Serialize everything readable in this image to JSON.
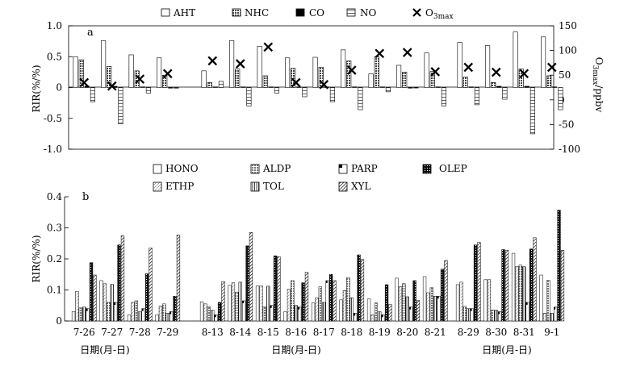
{
  "chart_data": [
    {
      "type": "bar",
      "panel_label": "a",
      "ylabel": "RIR(%/%)",
      "y2label_main": "O",
      "y2label_sub": "3max",
      "y2label_unit": "/ppbv",
      "ylim": [
        -1.0,
        1.0
      ],
      "y2lim": [
        -100,
        150
      ],
      "yticks": [
        "1.0",
        "0.5",
        "0",
        "-0.5",
        "-1.0"
      ],
      "y2ticks": [
        "150",
        "100",
        "50",
        "0",
        "-50",
        "-100"
      ],
      "legend": {
        "AHT": "AHT",
        "NHC": "NHC",
        "CO": "CO",
        "NO": "NO",
        "O3_main": "O",
        "O3_sub": "3max"
      },
      "series": [
        {
          "name": "AHT",
          "values": [
            0.5,
            0.76,
            0.53,
            0.48,
            0.27,
            0.76,
            0.67,
            0.48,
            0.49,
            0.61,
            0.22,
            0.36,
            0.56,
            0.73,
            0.68,
            0.9,
            0.82
          ]
        },
        {
          "name": "NHC",
          "values": [
            0.45,
            0.34,
            0.27,
            0.2,
            0.08,
            0.3,
            0.19,
            0.31,
            0.33,
            0.43,
            0.5,
            0.25,
            0.26,
            0.17,
            0.08,
            0.3,
            0.19
          ]
        },
        {
          "name": "CO",
          "values": [
            0.02,
            0.02,
            0.01,
            -0.01,
            0.01,
            0.01,
            0.01,
            0.01,
            0.01,
            0.01,
            0.01,
            -0.01,
            0.01,
            0.01,
            0.02,
            0.02,
            0.01
          ]
        },
        {
          "name": "NO",
          "values": [
            -0.23,
            -0.59,
            -0.09,
            -0.01,
            0.1,
            -0.3,
            -0.09,
            -0.15,
            -0.23,
            -0.36,
            -0.07,
            0.0,
            -0.3,
            -0.28,
            -0.19,
            -0.75,
            -0.36
          ]
        },
        {
          "name": "O3max",
          "axis": "right",
          "values": [
            35,
            28,
            42,
            53,
            79,
            73,
            107,
            35,
            31,
            60,
            94,
            96,
            57,
            66,
            56,
            53,
            66
          ]
        }
      ]
    },
    {
      "type": "bar",
      "panel_label": "b",
      "ylabel": "RIR(%/%)",
      "ylim": [
        0,
        0.4
      ],
      "yticks": [
        "0",
        "0.1",
        "0.2",
        "0.3",
        "0.4"
      ],
      "legend": {
        "HONO": "HONO",
        "ALDP": "ALDP",
        "PARP": "PARP",
        "OLEP": "OLEP",
        "ETHP": "ETHP",
        "TOL": "TOL",
        "XYL": "XYL"
      },
      "categories": [
        "7-26",
        "7-27",
        "7-28",
        "7-29",
        "8-13",
        "8-14",
        "8-15",
        "8-16",
        "8-17",
        "8-18",
        "8-19",
        "8-20",
        "8-21",
        "8-29",
        "8-30",
        "8-31",
        "9-1"
      ],
      "xlabel": "日期(月-日)",
      "series": [
        {
          "name": "HONO",
          "values": [
            0.03,
            0.13,
            0.02,
            0.02,
            0.062,
            0.115,
            0.113,
            0.03,
            0.058,
            0.068,
            0.071,
            0.138,
            0.143,
            0.117,
            0.133,
            0.218,
            0.148
          ]
        },
        {
          "name": "ETHP",
          "values": [
            0.095,
            0.12,
            0.06,
            0.048,
            0.055,
            0.123,
            0.113,
            0.102,
            0.075,
            0.098,
            0.02,
            0.11,
            0.091,
            0.125,
            0.133,
            0.175,
            0.025
          ]
        },
        {
          "name": "ALDP",
          "values": [
            0.042,
            0.06,
            0.065,
            0.055,
            0.045,
            0.093,
            0.045,
            0.13,
            0.11,
            0.14,
            0.058,
            0.12,
            0.107,
            0.047,
            0.035,
            0.18,
            0.131
          ]
        },
        {
          "name": "TOL",
          "values": [
            0.045,
            0.118,
            0.03,
            0.025,
            0.035,
            0.125,
            0.112,
            0.05,
            0.06,
            0.075,
            0.03,
            0.078,
            0.08,
            0.04,
            0.035,
            0.175,
            0.025
          ]
        },
        {
          "name": "PARP",
          "values": [
            0.04,
            0.06,
            0.04,
            0.03,
            0.02,
            0.065,
            0.05,
            0.045,
            0.13,
            0.025,
            0.02,
            0.045,
            0.08,
            0.04,
            0.03,
            0.06,
            0.045
          ]
        },
        {
          "name": "OLEP",
          "values": [
            0.188,
            0.245,
            0.152,
            0.08,
            0.06,
            0.242,
            0.21,
            0.123,
            0.15,
            0.213,
            0.117,
            0.13,
            0.167,
            0.245,
            0.23,
            0.232,
            0.357
          ]
        },
        {
          "name": "XYL",
          "values": [
            0.148,
            0.275,
            0.235,
            0.277,
            0.127,
            0.285,
            0.207,
            0.157,
            0.13,
            0.198,
            0.053,
            0.066,
            0.195,
            0.253,
            0.228,
            0.268,
            0.228
          ]
        }
      ]
    }
  ],
  "xlabels": [
    "日期(月-日)",
    "日期(月-日)",
    "日期(月-日)"
  ]
}
